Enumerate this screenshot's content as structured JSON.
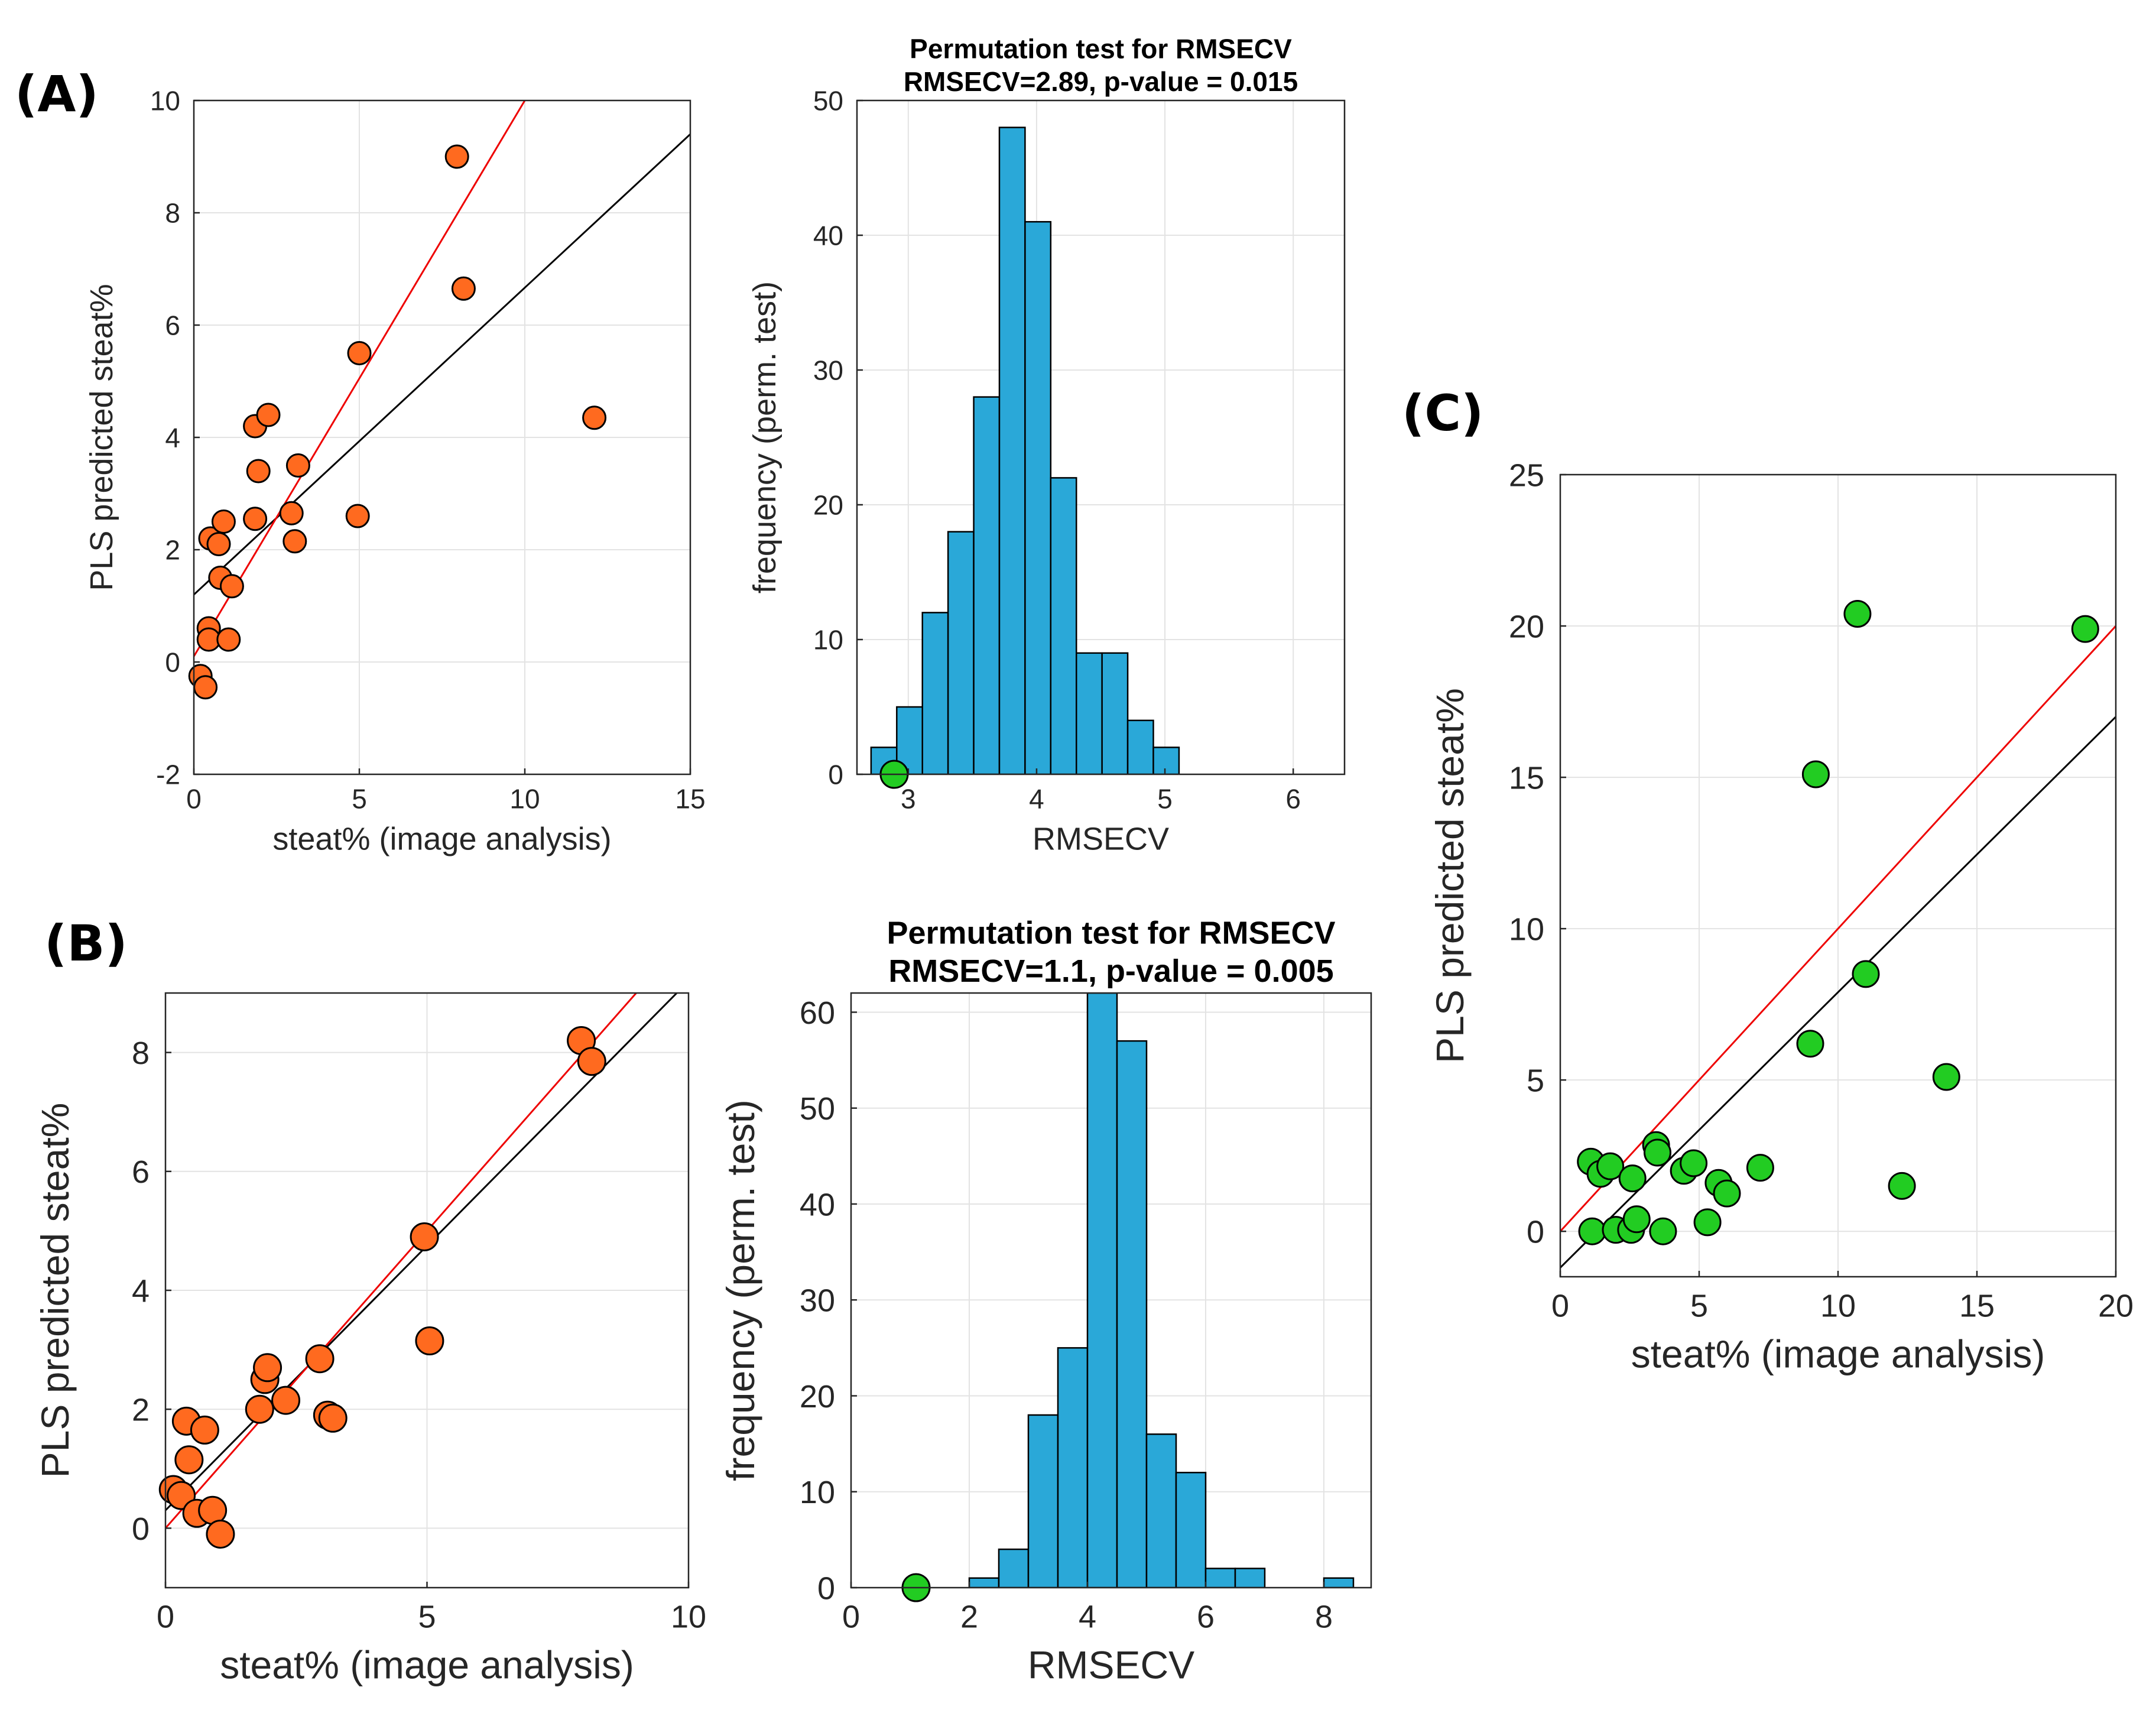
{
  "panel_labels": [
    "(A)",
    "(B)",
    "(C)"
  ],
  "colors": {
    "orange": "#ff6a1f",
    "green": "#22cc22",
    "blue": "#2aa8d8",
    "ideal_line": "#000000",
    "fit_line": "#ee0000",
    "grid": "#e3e3e3",
    "axis": "#262626"
  },
  "chart_data": [
    {
      "id": "A-scatter",
      "type": "scatter",
      "title": "",
      "xlabel": "steat% (image analysis)",
      "ylabel": "PLS predicted steat%",
      "xlim": [
        0,
        15
      ],
      "ylim": [
        -2,
        10
      ],
      "xticks": [
        0,
        5,
        10,
        15
      ],
      "yticks": [
        -2,
        0,
        2,
        4,
        6,
        8,
        10
      ],
      "grid": true,
      "marker_color": "#ff6a1f",
      "lines": [
        {
          "name": "identity",
          "color": "#000000",
          "points": [
            [
              0,
              1.2
            ],
            [
              15,
              9.4
            ]
          ]
        },
        {
          "name": "fit",
          "color": "#ee0000",
          "points": [
            [
              0,
              0.1
            ],
            [
              10,
              10
            ]
          ]
        }
      ],
      "points": [
        [
          0.2,
          -0.25
        ],
        [
          0.35,
          -0.45
        ],
        [
          0.45,
          0.6
        ],
        [
          0.45,
          0.4
        ],
        [
          0.5,
          2.2
        ],
        [
          0.75,
          2.1
        ],
        [
          0.8,
          1.5
        ],
        [
          0.9,
          2.5
        ],
        [
          1.05,
          0.4
        ],
        [
          1.15,
          1.35
        ],
        [
          1.85,
          2.55
        ],
        [
          1.85,
          4.2
        ],
        [
          1.95,
          3.4
        ],
        [
          2.25,
          4.4
        ],
        [
          2.95,
          2.65
        ],
        [
          3.05,
          2.15
        ],
        [
          3.15,
          3.5
        ],
        [
          4.95,
          2.6
        ],
        [
          5.0,
          5.5
        ],
        [
          7.95,
          9.0
        ],
        [
          8.15,
          6.65
        ],
        [
          12.1,
          4.35
        ]
      ]
    },
    {
      "id": "A-hist",
      "type": "bar",
      "title": "Permutation test for RMSECV",
      "subtitle": "RMSECV=2.89, p-value = 0.015",
      "xlabel": "RMSECV",
      "ylabel": "frequency (perm. test)",
      "xlim": [
        2.6,
        6.4
      ],
      "ylim": [
        0,
        50
      ],
      "xticks": [
        3,
        4,
        5,
        6
      ],
      "yticks": [
        0,
        10,
        20,
        30,
        40,
        50
      ],
      "grid": true,
      "bar_color": "#2aa8d8",
      "bin_start": 2.71,
      "bin_width": 0.2,
      "values": [
        2,
        5,
        12,
        18,
        28,
        48,
        41,
        22,
        9,
        9,
        4,
        2
      ],
      "marker": {
        "x": 2.89,
        "y": 0,
        "color": "#22cc22"
      }
    },
    {
      "id": "B-scatter",
      "type": "scatter",
      "title": "",
      "xlabel": "steat% (image analysis)",
      "ylabel": "PLS predicted steat%",
      "xlim": [
        0,
        10
      ],
      "ylim": [
        -1,
        9
      ],
      "xticks": [
        0,
        5,
        10
      ],
      "yticks": [
        0,
        2,
        4,
        6,
        8
      ],
      "grid": true,
      "marker_color": "#ff6a1f",
      "lines": [
        {
          "name": "identity",
          "color": "#000000",
          "points": [
            [
              0,
              0.3
            ],
            [
              10,
              9.2
            ]
          ]
        },
        {
          "name": "fit",
          "color": "#ee0000",
          "points": [
            [
              0,
              0
            ],
            [
              9,
              9
            ]
          ]
        }
      ],
      "points": [
        [
          0.15,
          0.65
        ],
        [
          0.3,
          0.55
        ],
        [
          0.4,
          1.8
        ],
        [
          0.45,
          1.15
        ],
        [
          0.6,
          0.25
        ],
        [
          0.75,
          1.65
        ],
        [
          0.9,
          0.3
        ],
        [
          1.05,
          -0.1
        ],
        [
          1.8,
          2.0
        ],
        [
          1.9,
          2.5
        ],
        [
          1.95,
          2.7
        ],
        [
          2.3,
          2.15
        ],
        [
          2.95,
          2.85
        ],
        [
          3.1,
          1.9
        ],
        [
          3.2,
          1.85
        ],
        [
          4.95,
          4.9
        ],
        [
          5.05,
          3.15
        ],
        [
          7.95,
          8.2
        ],
        [
          8.15,
          7.85
        ]
      ]
    },
    {
      "id": "B-hist",
      "type": "bar",
      "title": "Permutation test for RMSECV",
      "subtitle": "RMSECV=1.1, p-value = 0.005",
      "xlabel": "RMSECV",
      "ylabel": "frequency (perm. test)",
      "xlim": [
        0,
        8.8
      ],
      "ylim": [
        0,
        62
      ],
      "xticks": [
        0,
        2,
        4,
        6,
        8
      ],
      "yticks": [
        0,
        10,
        20,
        30,
        40,
        50,
        60
      ],
      "grid": true,
      "bar_color": "#2aa8d8",
      "bin_start": 2.0,
      "bin_width": 0.5,
      "values": [
        1,
        4,
        18,
        25,
        62,
        57,
        16,
        12,
        2,
        2,
        0,
        0,
        1
      ],
      "marker": {
        "x": 1.1,
        "y": 0,
        "color": "#22cc22"
      }
    },
    {
      "id": "C-scatter",
      "type": "scatter",
      "title": "",
      "xlabel": "steat% (image analysis)",
      "ylabel": "PLS predicted steat%",
      "xlim": [
        0,
        20
      ],
      "ylim": [
        -1.5,
        25
      ],
      "xticks": [
        0,
        5,
        10,
        15,
        20
      ],
      "yticks": [
        0,
        5,
        10,
        15,
        20,
        25
      ],
      "grid": true,
      "marker_color": "#22cc22",
      "lines": [
        {
          "name": "identity",
          "color": "#000000",
          "points": [
            [
              0,
              -1.2
            ],
            [
              20,
              17
            ]
          ]
        },
        {
          "name": "fit",
          "color": "#ee0000",
          "points": [
            [
              0,
              0
            ],
            [
              20,
              20
            ]
          ]
        }
      ],
      "points": [
        [
          1.1,
          2.3
        ],
        [
          1.15,
          0.0
        ],
        [
          1.45,
          1.9
        ],
        [
          1.8,
          2.15
        ],
        [
          2.0,
          0.05
        ],
        [
          2.55,
          0.05
        ],
        [
          2.6,
          1.75
        ],
        [
          2.75,
          0.4
        ],
        [
          3.45,
          2.85
        ],
        [
          3.5,
          2.6
        ],
        [
          3.7,
          0.0
        ],
        [
          4.45,
          2.0
        ],
        [
          4.8,
          2.25
        ],
        [
          5.3,
          0.3
        ],
        [
          5.7,
          1.6
        ],
        [
          6.0,
          1.25
        ],
        [
          7.2,
          2.1
        ],
        [
          9.0,
          6.2
        ],
        [
          9.2,
          15.1
        ],
        [
          10.7,
          20.4
        ],
        [
          11.0,
          8.5
        ],
        [
          12.3,
          1.5
        ],
        [
          13.9,
          5.1
        ],
        [
          18.9,
          19.9
        ]
      ]
    }
  ]
}
